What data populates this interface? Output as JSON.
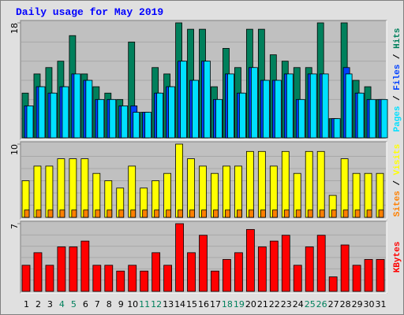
{
  "chart_data": {
    "type": "bar",
    "title": "Daily usage for May 2019",
    "categories": [
      "1",
      "2",
      "3",
      "4",
      "5",
      "6",
      "7",
      "8",
      "9",
      "10",
      "11",
      "12",
      "13",
      "14",
      "15",
      "16",
      "17",
      "18",
      "19",
      "20",
      "21",
      "22",
      "23",
      "24",
      "25",
      "26",
      "27",
      "28",
      "29",
      "30",
      "31"
    ],
    "category_colors": [
      "#000000",
      "#000000",
      "#000000",
      "#00805c",
      "#00805c",
      "#000000",
      "#000000",
      "#000000",
      "#000000",
      "#000000",
      "#00805c",
      "#00805c",
      "#000000",
      "#000000",
      "#000000",
      "#000000",
      "#000000",
      "#00805c",
      "#00805c",
      "#000000",
      "#000000",
      "#000000",
      "#000000",
      "#000000",
      "#00805c",
      "#00805c",
      "#000000",
      "#000000",
      "#000000",
      "#000000",
      "#000000"
    ],
    "legend_separator": " / ",
    "panels": [
      {
        "ylim": [
          0,
          18
        ],
        "yticks": [
          18
        ],
        "series": [
          {
            "name": "Hits",
            "color": "#00805c",
            "values": [
              7,
              10,
              11,
              12,
              16,
              10,
              8,
              7,
              6,
              15,
              4,
              11,
              10,
              18,
              17,
              17,
              8,
              14,
              11,
              17,
              17,
              13,
              12,
              11,
              11,
              18,
              3,
              18,
              9,
              8,
              6
            ]
          },
          {
            "name": "Files",
            "color": "#0040ff",
            "values": [
              5,
              8,
              7,
              8,
              10,
              9,
              6,
              6,
              5,
              5,
              4,
              7,
              8,
              12,
              9,
              12,
              6,
              10,
              7,
              11,
              9,
              9,
              10,
              6,
              10,
              10,
              3,
              11,
              7,
              6,
              6
            ]
          },
          {
            "name": "Pages",
            "color": "#00e0ff",
            "values": [
              5,
              8,
              7,
              8,
              10,
              9,
              6,
              6,
              5,
              4,
              4,
              7,
              8,
              12,
              9,
              12,
              6,
              10,
              7,
              11,
              9,
              9,
              10,
              6,
              10,
              10,
              3,
              10,
              7,
              6,
              6
            ]
          }
        ]
      },
      {
        "ylim": [
          0,
          10
        ],
        "yticks": [
          10
        ],
        "series": [
          {
            "name": "Visits",
            "color": "#ffff00",
            "values": [
              5,
              7,
              7,
              8,
              8,
              8,
              6,
              5,
              4,
              7,
              4,
              5,
              6,
              10,
              8,
              7,
              6,
              7,
              7,
              9,
              9,
              7,
              9,
              6,
              9,
              9,
              3,
              8,
              6,
              6,
              6
            ]
          },
          {
            "name": "Sites",
            "color": "#ff8000",
            "values": [
              1,
              1,
              1,
              1,
              1,
              1,
              1,
              1,
              1,
              1,
              1,
              1,
              1,
              1,
              1,
              1,
              1,
              1,
              1,
              1,
              1,
              1,
              1,
              1,
              1,
              1,
              1,
              1,
              1,
              1,
              1
            ]
          }
        ]
      },
      {
        "ylim": [
          0,
          7
        ],
        "yticks": [
          7
        ],
        "series": [
          {
            "name": "KBytes",
            "color": "#ff0000",
            "values": [
              2.7,
              4.0,
              2.7,
              4.6,
              4.6,
              5.2,
              2.7,
              2.7,
              2.1,
              2.7,
              2.1,
              4.0,
              2.7,
              7.0,
              4.0,
              5.8,
              2.1,
              3.3,
              4.0,
              6.4,
              4.6,
              5.2,
              5.8,
              2.7,
              4.6,
              5.8,
              1.5,
              4.8,
              2.7,
              3.3,
              3.3
            ]
          }
        ]
      }
    ]
  }
}
